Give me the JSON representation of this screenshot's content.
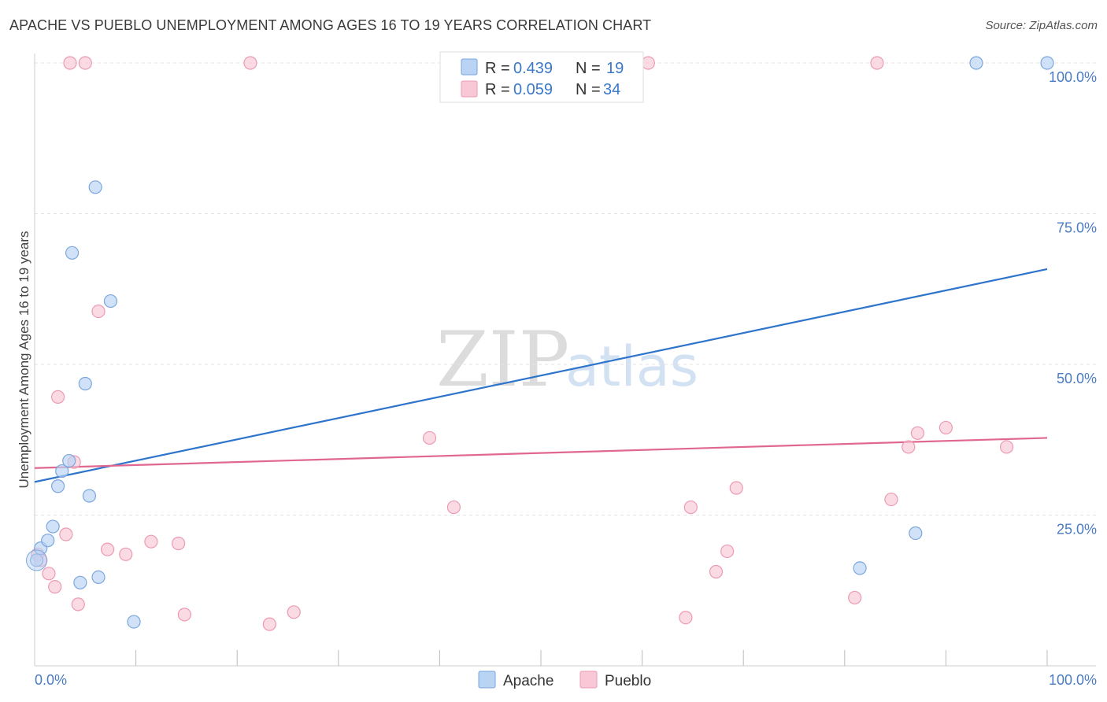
{
  "title": "APACHE VS PUEBLO UNEMPLOYMENT AMONG AGES 16 TO 19 YEARS CORRELATION CHART",
  "source": "Source: ZipAtlas.com",
  "watermark": {
    "zip": "ZIP",
    "atlas": "atlas"
  },
  "legend": {
    "r_label": "R =",
    "n_label": "N =",
    "entries": [
      {
        "r": "0.439",
        "n": "19"
      },
      {
        "r": "0.059",
        "n": "34"
      }
    ]
  },
  "colors": {
    "apache_fill": "#b8d3f4",
    "apache_stroke": "#7aa7dc",
    "apache_line": "#2e74cc",
    "pueblo_fill": "#f8c8d6",
    "pueblo_stroke": "#ec9ab3",
    "pueblo_line": "#e0678f",
    "grid": "#e3e3e3",
    "tick_text": "#4a7cc4"
  },
  "chart_data": {
    "type": "scatter",
    "title": "APACHE VS PUEBLO UNEMPLOYMENT AMONG AGES 16 TO 19 YEARS CORRELATION CHART",
    "xlabel": "",
    "ylabel": "Unemployment Among Ages 16 to 19 years",
    "xlim": [
      0,
      100
    ],
    "ylim": [
      0,
      100
    ],
    "x_tick_labels": [
      {
        "value": 0,
        "label": "0.0%"
      },
      {
        "value": 100,
        "label": "100.0%"
      }
    ],
    "y_tick_labels": [
      {
        "value": 25,
        "label": "25.0%"
      },
      {
        "value": 50,
        "label": "50.0%"
      },
      {
        "value": 75,
        "label": "75.0%"
      },
      {
        "value": 100,
        "label": "100.0%"
      }
    ],
    "grid": true,
    "legend_position": "top-center",
    "series": [
      {
        "name": "Apache",
        "r": 0.439,
        "n": 19,
        "points": [
          [
            0.2,
            17.5
          ],
          [
            0.6,
            19.5
          ],
          [
            1.3,
            20.8
          ],
          [
            1.8,
            23.1
          ],
          [
            2.3,
            29.8
          ],
          [
            2.7,
            32.3
          ],
          [
            3.4,
            34.0
          ],
          [
            3.7,
            68.5
          ],
          [
            4.5,
            13.8
          ],
          [
            5.0,
            46.8
          ],
          [
            5.4,
            28.2
          ],
          [
            6.0,
            79.4
          ],
          [
            6.3,
            14.7
          ],
          [
            7.5,
            60.5
          ],
          [
            9.8,
            7.3
          ],
          [
            81.5,
            16.2
          ],
          [
            87.0,
            22.0
          ],
          [
            93.0,
            100
          ],
          [
            100.0,
            100
          ]
        ],
        "trend": {
          "x": [
            0,
            100
          ],
          "y": [
            30.5,
            65.8
          ]
        }
      },
      {
        "name": "Pueblo",
        "r": 0.059,
        "n": 34,
        "points": [
          [
            0.3,
            18.5
          ],
          [
            0.6,
            17.5
          ],
          [
            1.4,
            15.3
          ],
          [
            2.0,
            13.1
          ],
          [
            2.3,
            44.6
          ],
          [
            3.1,
            21.8
          ],
          [
            3.5,
            100
          ],
          [
            3.9,
            33.8
          ],
          [
            4.3,
            10.2
          ],
          [
            5.0,
            100
          ],
          [
            6.3,
            58.8
          ],
          [
            7.2,
            19.3
          ],
          [
            9.0,
            18.5
          ],
          [
            11.5,
            20.6
          ],
          [
            14.2,
            20.3
          ],
          [
            14.8,
            8.5
          ],
          [
            21.3,
            100
          ],
          [
            23.2,
            6.9
          ],
          [
            25.6,
            8.9
          ],
          [
            39.0,
            37.8
          ],
          [
            41.4,
            26.3
          ],
          [
            60.6,
            100
          ],
          [
            64.3,
            8.0
          ],
          [
            64.8,
            26.3
          ],
          [
            67.3,
            15.6
          ],
          [
            68.4,
            19.0
          ],
          [
            69.3,
            29.5
          ],
          [
            81.0,
            11.3
          ],
          [
            83.2,
            100
          ],
          [
            84.6,
            27.6
          ],
          [
            86.3,
            36.3
          ],
          [
            87.2,
            38.6
          ],
          [
            90.0,
            39.5
          ],
          [
            96.0,
            36.3
          ]
        ],
        "trend": {
          "x": [
            0,
            100
          ],
          "y": [
            32.8,
            37.8
          ]
        }
      }
    ]
  }
}
